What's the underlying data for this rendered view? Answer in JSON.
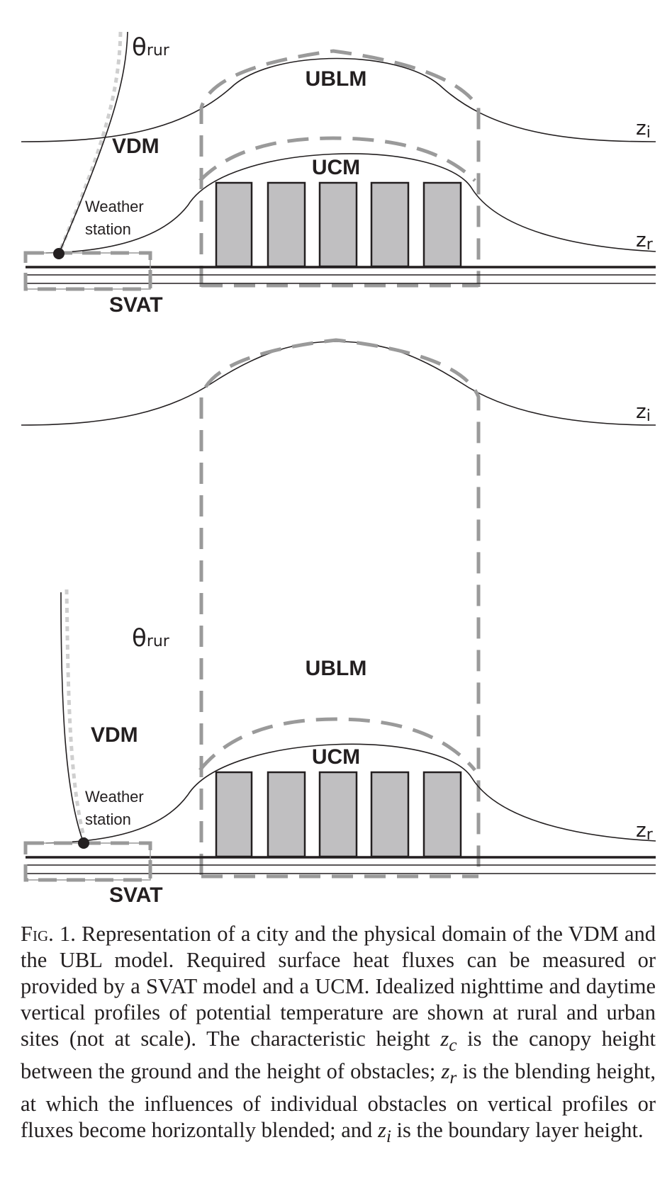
{
  "figure": {
    "panels": [
      {
        "theta_label": "θ",
        "theta_sub": "rur",
        "ublm_label": "UBLM",
        "ucm_label": "UCM",
        "vdm_label": "VDM",
        "station_label_line1": "Weather",
        "station_label_line2": "station",
        "svat_label": "SVAT",
        "zi_label": "z",
        "zi_sub": "i",
        "zr_label": "z",
        "zr_sub": "r"
      },
      {
        "zi_label": "z",
        "zi_sub": "i",
        "theta_label": "θ",
        "theta_sub": "rur",
        "ublm_label": "UBLM",
        "ucm_label": "UCM",
        "vdm_label": "VDM",
        "station_label_line1": "Weather",
        "station_label_line2": "station",
        "svat_label": "SVAT",
        "zr_label": "z",
        "zr_sub": "r"
      }
    ]
  },
  "caption": {
    "fig_number": "Fig. 1.",
    "part1": "Representation of a city and the physical domain of the VDM and the UBL model. Required surface heat fluxes can be measured or provided by a SVAT model and a UCM. Idealized nighttime and daytime vertical profiles of potential temperature are shown at rural and urban sites (not at scale). The characteristic height ",
    "zc_var": "z",
    "zc_sub": "c",
    "part2": " is the canopy height between the ground and the height of obstacles; ",
    "zr_var": "z",
    "zr_sub": "r",
    "part3": " is the blending height, at which the influences of individual obstacles on vertical profiles or fluxes become horizontally blended; and ",
    "zi_var": "z",
    "zi_sub": "i",
    "part4": " is the boundary layer height."
  }
}
